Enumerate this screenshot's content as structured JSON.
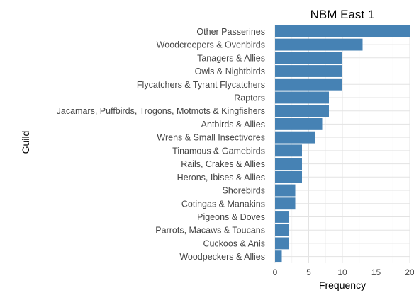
{
  "chart_data": {
    "type": "bar",
    "orientation": "horizontal",
    "title": "NBM East 1",
    "xlabel": "Frequency",
    "ylabel": "Guild",
    "xlim": [
      0,
      20
    ],
    "xticks": [
      0,
      5,
      10,
      15,
      20
    ],
    "grid": true,
    "legend": "none",
    "bar_color": "#4682b4",
    "categories": [
      "Other Passerines",
      "Woodcreepers & Ovenbirds",
      "Tanagers & Allies",
      "Owls & Nightbirds",
      "Flycatchers & Tyrant Flycatchers",
      "Raptors",
      "Jacamars, Puffbirds, Trogons, Motmots & Kingfishers",
      "Antbirds & Allies",
      "Wrens & Small Insectivores",
      "Tinamous & Gamebirds",
      "Rails, Crakes & Allies",
      "Herons, Ibises & Allies",
      "Shorebirds",
      "Cotingas & Manakins",
      "Pigeons & Doves",
      "Parrots, Macaws & Toucans",
      "Cuckoos & Anis",
      "Woodpeckers & Allies"
    ],
    "values": [
      20,
      13,
      10,
      10,
      10,
      8,
      8,
      7,
      6,
      4,
      4,
      4,
      3,
      3,
      2,
      2,
      2,
      1
    ]
  }
}
